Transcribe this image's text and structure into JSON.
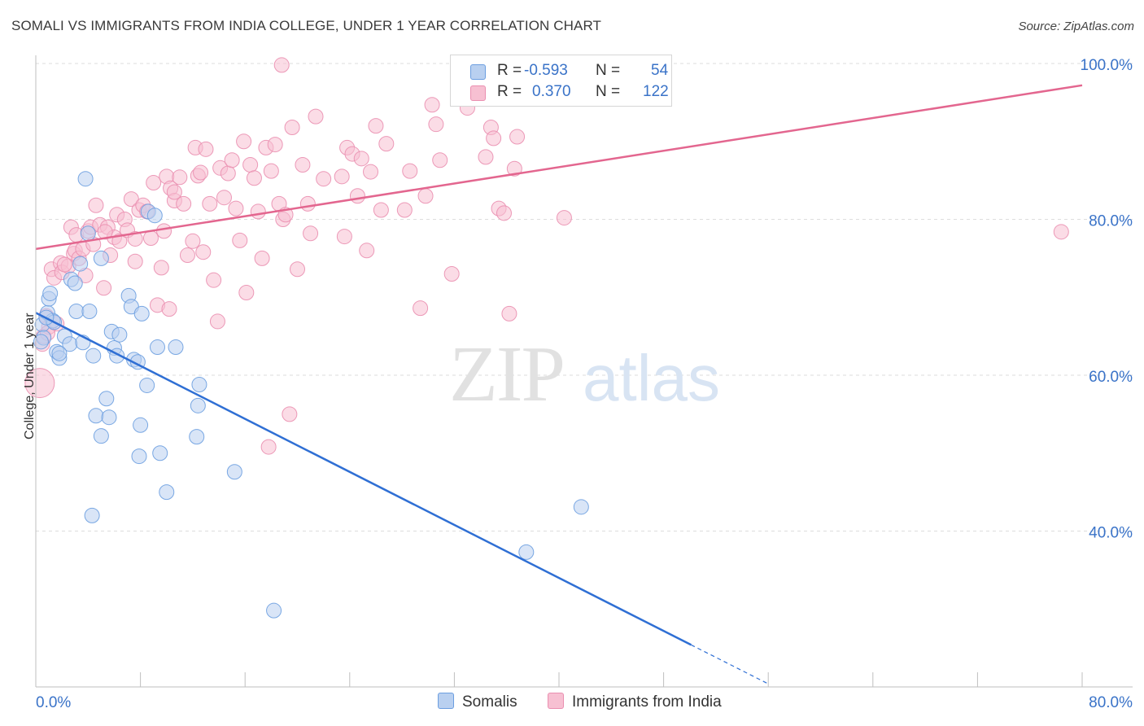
{
  "title": "SOMALI VS IMMIGRANTS FROM INDIA COLLEGE, UNDER 1 YEAR CORRELATION CHART",
  "source": "Source: ZipAtlas.com",
  "watermark": {
    "zip": "ZIP",
    "atlas": "atlas"
  },
  "colors": {
    "blue_fill": "#b9d0f0",
    "blue_stroke": "#6c9ee0",
    "blue_line": "#2f6fd4",
    "pink_fill": "#f7c0d2",
    "pink_stroke": "#ea8fb0",
    "pink_line": "#e3668f",
    "axis_label": "#3a73c8",
    "grid": "#dddddd"
  },
  "legend": {
    "row1": {
      "r_label": "R =",
      "r_value": "-0.593",
      "n_label": "N =",
      "n_value": "54"
    },
    "row2": {
      "r_label": "R =",
      "r_value": "0.370",
      "n_label": "N =",
      "n_value": "122"
    }
  },
  "bottom_legend": {
    "series1": "Somalis",
    "series2": "Immigrants from India"
  },
  "chart_data": {
    "type": "scatter",
    "title": "SOMALI VS IMMIGRANTS FROM INDIA COLLEGE, UNDER 1 YEAR CORRELATION CHART",
    "xlabel": "",
    "ylabel": "College, Under 1 year",
    "xlim": [
      0,
      80
    ],
    "ylim": [
      20,
      100
    ],
    "x_ticks": [
      0,
      8,
      16,
      24,
      32,
      40,
      48,
      56,
      64,
      72,
      80
    ],
    "x_tick_labels": {
      "left": "0.0%",
      "right": "80.0%"
    },
    "y_ticks": [
      40,
      60,
      80,
      100
    ],
    "y_tick_labels": [
      "40.0%",
      "60.0%",
      "80.0%",
      "100.0%"
    ],
    "grid": true,
    "series": [
      {
        "name": "Somalis",
        "color": "#6c9ee0",
        "R": -0.593,
        "N": 54,
        "trend": {
          "x0": 0,
          "y0": 68.0,
          "x1": 50.1,
          "y1": 25.4,
          "dash_to_x": 56.0,
          "dash_to_y": 20.4
        },
        "points": [
          [
            0.5,
            66.5
          ],
          [
            0.6,
            64.8
          ],
          [
            0.9,
            68.0
          ],
          [
            1.0,
            69.8
          ],
          [
            1.1,
            70.5
          ],
          [
            1.3,
            67.0
          ],
          [
            1.4,
            66.8
          ],
          [
            1.6,
            63.0
          ],
          [
            1.8,
            62.2
          ],
          [
            2.2,
            65.0
          ],
          [
            2.6,
            64.0
          ],
          [
            2.7,
            72.3
          ],
          [
            3.0,
            71.8
          ],
          [
            3.1,
            68.2
          ],
          [
            3.4,
            74.3
          ],
          [
            3.6,
            64.2
          ],
          [
            3.8,
            85.2
          ],
          [
            4.0,
            78.2
          ],
          [
            4.1,
            68.2
          ],
          [
            4.4,
            62.5
          ],
          [
            4.6,
            54.8
          ],
          [
            5.0,
            52.2
          ],
          [
            5.0,
            75.0
          ],
          [
            5.4,
            57.0
          ],
          [
            5.6,
            54.6
          ],
          [
            5.8,
            65.6
          ],
          [
            6.0,
            63.5
          ],
          [
            6.2,
            62.5
          ],
          [
            6.4,
            65.2
          ],
          [
            7.1,
            70.2
          ],
          [
            7.3,
            68.8
          ],
          [
            7.5,
            62.0
          ],
          [
            7.8,
            61.7
          ],
          [
            7.9,
            49.6
          ],
          [
            8.0,
            53.6
          ],
          [
            8.1,
            67.9
          ],
          [
            8.5,
            58.7
          ],
          [
            8.6,
            81.0
          ],
          [
            9.1,
            80.5
          ],
          [
            9.3,
            63.6
          ],
          [
            9.5,
            50.0
          ],
          [
            10.0,
            45.0
          ],
          [
            10.7,
            63.6
          ],
          [
            12.3,
            52.1
          ],
          [
            12.4,
            56.1
          ],
          [
            12.5,
            58.8
          ],
          [
            15.2,
            47.6
          ],
          [
            18.2,
            29.8
          ],
          [
            37.5,
            37.3
          ],
          [
            41.7,
            43.1
          ],
          [
            4.3,
            42.0
          ],
          [
            0.4,
            64.3
          ],
          [
            1.8,
            62.8
          ],
          [
            0.8,
            67.4
          ]
        ]
      },
      {
        "name": "Immigrants from India",
        "color": "#ea8fb0",
        "R": 0.37,
        "N": 122,
        "trend": {
          "x0": 0,
          "y0": 76.2,
          "x1": 80,
          "y1": 97.2
        },
        "points": [
          [
            0.3,
            59.0
          ],
          [
            0.5,
            64.0
          ],
          [
            0.6,
            65.0
          ],
          [
            0.8,
            67.6
          ],
          [
            1.0,
            66.2
          ],
          [
            1.2,
            73.6
          ],
          [
            1.4,
            72.5
          ],
          [
            1.6,
            66.6
          ],
          [
            1.9,
            74.4
          ],
          [
            2.0,
            73.2
          ],
          [
            2.5,
            74.0
          ],
          [
            2.7,
            79.0
          ],
          [
            2.9,
            75.6
          ],
          [
            3.0,
            76.0
          ],
          [
            3.1,
            78.0
          ],
          [
            3.3,
            75.0
          ],
          [
            3.6,
            76.2
          ],
          [
            3.8,
            72.8
          ],
          [
            4.0,
            78.5
          ],
          [
            4.2,
            79.0
          ],
          [
            4.4,
            76.8
          ],
          [
            4.6,
            81.8
          ],
          [
            4.9,
            79.3
          ],
          [
            5.2,
            71.2
          ],
          [
            5.5,
            79.0
          ],
          [
            5.7,
            75.4
          ],
          [
            6.0,
            77.7
          ],
          [
            6.2,
            80.6
          ],
          [
            6.4,
            77.2
          ],
          [
            6.8,
            80.0
          ],
          [
            7.0,
            78.6
          ],
          [
            7.3,
            82.6
          ],
          [
            7.6,
            74.6
          ],
          [
            7.9,
            81.2
          ],
          [
            8.2,
            81.8
          ],
          [
            8.5,
            81.0
          ],
          [
            8.8,
            77.6
          ],
          [
            9.0,
            84.7
          ],
          [
            9.3,
            69.0
          ],
          [
            9.6,
            73.8
          ],
          [
            9.8,
            78.5
          ],
          [
            10.0,
            85.5
          ],
          [
            10.2,
            68.5
          ],
          [
            10.3,
            84.0
          ],
          [
            10.6,
            82.4
          ],
          [
            11.0,
            85.4
          ],
          [
            11.3,
            82.0
          ],
          [
            11.6,
            75.4
          ],
          [
            12.0,
            77.2
          ],
          [
            12.2,
            89.2
          ],
          [
            12.4,
            85.6
          ],
          [
            12.8,
            75.8
          ],
          [
            13.0,
            89.0
          ],
          [
            13.3,
            82.0
          ],
          [
            13.6,
            72.2
          ],
          [
            13.9,
            66.9
          ],
          [
            14.1,
            86.6
          ],
          [
            14.4,
            82.8
          ],
          [
            14.7,
            85.9
          ],
          [
            15.0,
            87.6
          ],
          [
            15.3,
            81.4
          ],
          [
            15.6,
            77.3
          ],
          [
            15.9,
            90.0
          ],
          [
            16.1,
            70.6
          ],
          [
            16.4,
            87.0
          ],
          [
            16.7,
            85.3
          ],
          [
            17.0,
            81.0
          ],
          [
            17.3,
            75.0
          ],
          [
            17.6,
            89.2
          ],
          [
            17.8,
            50.8
          ],
          [
            18.0,
            86.2
          ],
          [
            18.3,
            89.6
          ],
          [
            18.6,
            82.0
          ],
          [
            18.9,
            80.0
          ],
          [
            19.1,
            80.6
          ],
          [
            19.4,
            55.0
          ],
          [
            19.6,
            91.8
          ],
          [
            20.0,
            73.6
          ],
          [
            20.4,
            87.0
          ],
          [
            20.8,
            82.0
          ],
          [
            21.0,
            78.2
          ],
          [
            21.4,
            93.2
          ],
          [
            22.0,
            85.2
          ],
          [
            23.4,
            85.5
          ],
          [
            23.6,
            77.8
          ],
          [
            23.8,
            89.2
          ],
          [
            24.2,
            88.4
          ],
          [
            24.6,
            83.0
          ],
          [
            24.9,
            87.8
          ],
          [
            25.3,
            76.0
          ],
          [
            25.6,
            86.1
          ],
          [
            26.0,
            92.0
          ],
          [
            26.4,
            81.2
          ],
          [
            26.8,
            89.7
          ],
          [
            28.2,
            81.2
          ],
          [
            28.6,
            86.2
          ],
          [
            29.4,
            68.6
          ],
          [
            29.8,
            83.0
          ],
          [
            30.3,
            94.7
          ],
          [
            30.6,
            92.2
          ],
          [
            30.9,
            87.6
          ],
          [
            31.8,
            73.0
          ],
          [
            32.3,
            98.4
          ],
          [
            33.0,
            94.3
          ],
          [
            34.4,
            88.0
          ],
          [
            34.8,
            91.8
          ],
          [
            35.0,
            90.4
          ],
          [
            35.4,
            81.4
          ],
          [
            35.8,
            80.8
          ],
          [
            36.2,
            67.9
          ],
          [
            36.6,
            86.5
          ],
          [
            36.8,
            90.6
          ],
          [
            40.4,
            80.2
          ],
          [
            78.4,
            78.4
          ],
          [
            18.8,
            99.8
          ],
          [
            0.9,
            65.4
          ],
          [
            2.2,
            74.2
          ],
          [
            5.3,
            78.4
          ],
          [
            12.6,
            86.0
          ],
          [
            10.6,
            83.5
          ],
          [
            7.6,
            77.5
          ]
        ]
      }
    ]
  }
}
